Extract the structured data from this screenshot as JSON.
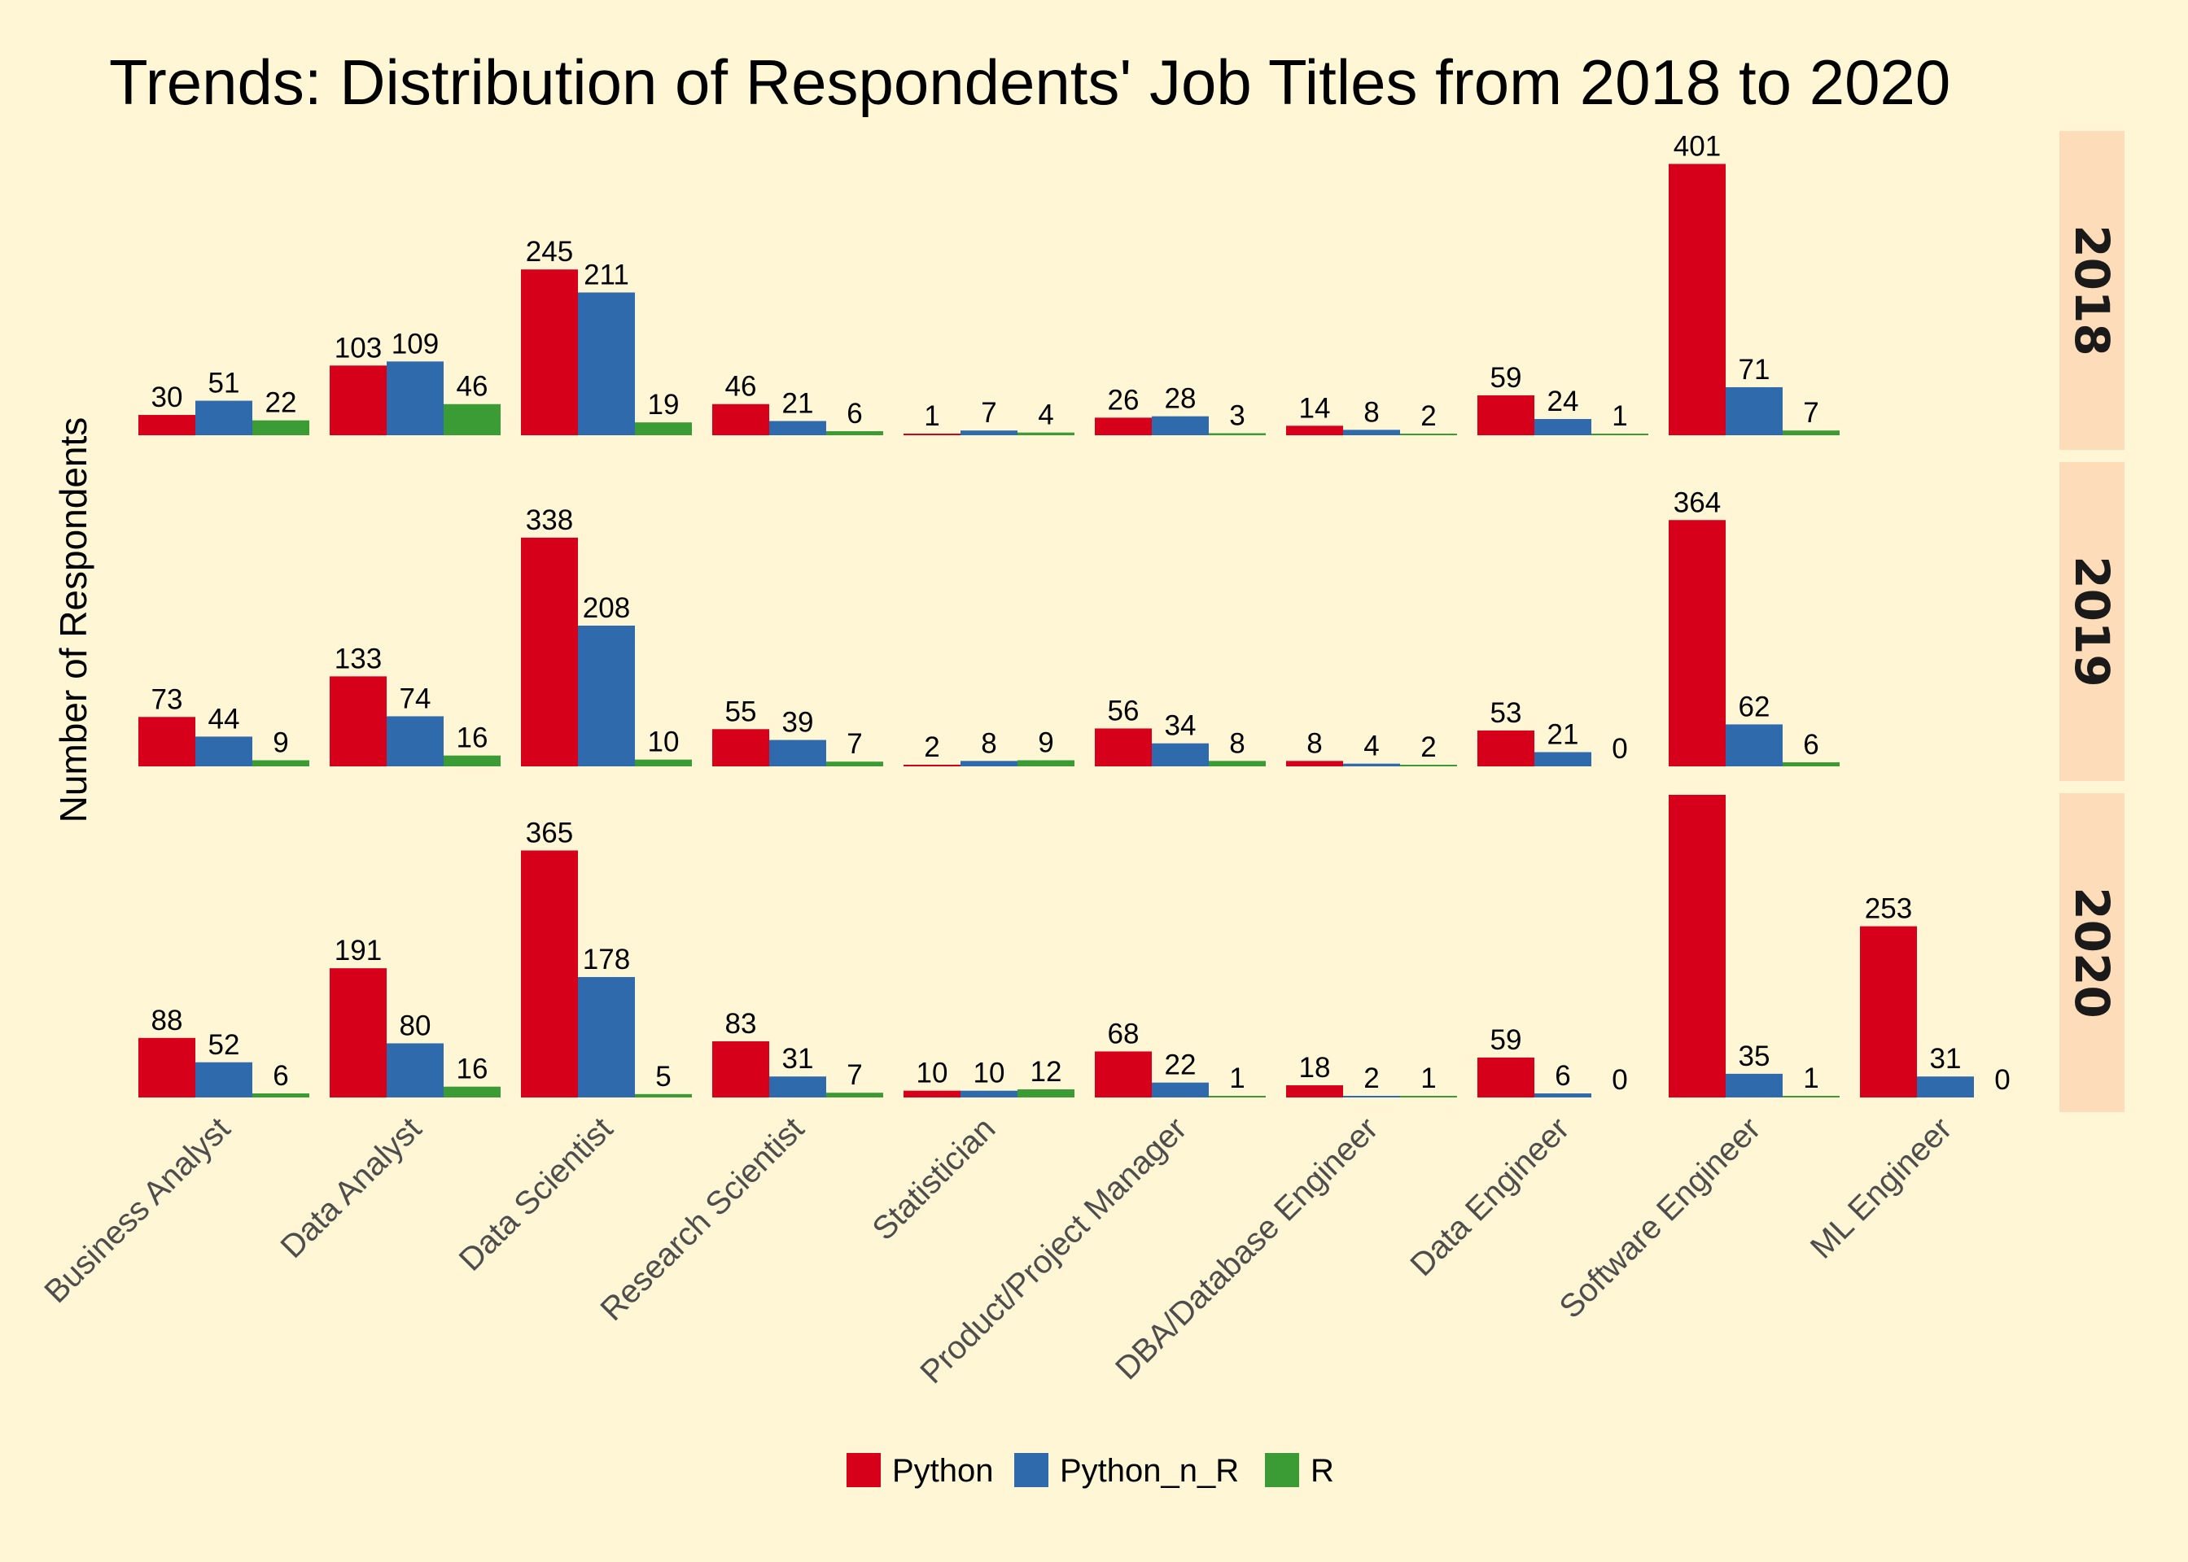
{
  "chart_data": {
    "type": "bar",
    "title": "Trends: Distribution of Respondents' Job Titles from 2018 to 2020",
    "xlabel": "",
    "ylabel": "Number of Respondents",
    "categories": [
      "Business Analyst",
      "Data Analyst",
      "Data Scientist",
      "Research Scientist",
      "Statistician",
      "Product/Project Manager",
      "DBA/Database Engineer",
      "Data Engineer",
      "Software Engineer",
      "ML Engineer"
    ],
    "legend_position": "bottom",
    "grid": false,
    "series_colors": {
      "Python": "#d7001b",
      "Python_n_R": "#2e6aac",
      "R": "#3b9c35"
    },
    "series": [
      {
        "name": "Python",
        "color": "#d7001b"
      },
      {
        "name": "Python_n_R",
        "color": "#2e6aac"
      },
      {
        "name": "R",
        "color": "#3b9c35"
      }
    ],
    "facets": [
      {
        "label": "2018",
        "ylim": [
          0,
          401
        ],
        "values": {
          "Business Analyst": [
            30,
            51,
            22
          ],
          "Data Analyst": [
            103,
            109,
            46
          ],
          "Data Scientist": [
            245,
            211,
            19
          ],
          "Research Scientist": [
            46,
            21,
            6
          ],
          "Statistician": [
            1,
            7,
            4
          ],
          "Product/Project Manager": [
            26,
            28,
            3
          ],
          "DBA/Database Engineer": [
            14,
            8,
            2
          ],
          "Data Engineer": [
            59,
            24,
            1
          ],
          "Software Engineer": [
            401,
            71,
            7
          ]
        }
      },
      {
        "label": "2019",
        "ylim": [
          0,
          401
        ],
        "values": {
          "Business Analyst": [
            73,
            44,
            9
          ],
          "Data Analyst": [
            133,
            74,
            16
          ],
          "Data Scientist": [
            338,
            208,
            10
          ],
          "Research Scientist": [
            55,
            39,
            7
          ],
          "Statistician": [
            2,
            8,
            9
          ],
          "Product/Project Manager": [
            56,
            34,
            8
          ],
          "DBA/Database Engineer": [
            8,
            4,
            2
          ],
          "Data Engineer": [
            53,
            21,
            0
          ],
          "Software Engineer": [
            364,
            62,
            6
          ]
        }
      },
      {
        "label": "2020",
        "ylim": [
          0,
          480
        ],
        "values": {
          "Business Analyst": [
            88,
            52,
            6
          ],
          "Data Analyst": [
            191,
            80,
            16
          ],
          "Data Scientist": [
            365,
            178,
            5
          ],
          "Research Scientist": [
            83,
            31,
            7
          ],
          "Statistician": [
            10,
            10,
            12
          ],
          "Product/Project Manager": [
            68,
            22,
            1
          ],
          "DBA/Database Engineer": [
            18,
            2,
            1
          ],
          "Data Engineer": [
            59,
            6,
            0
          ],
          "Software Engineer": [
            480,
            35,
            1
          ],
          "ML Engineer": [
            253,
            31,
            0
          ]
        }
      }
    ]
  }
}
